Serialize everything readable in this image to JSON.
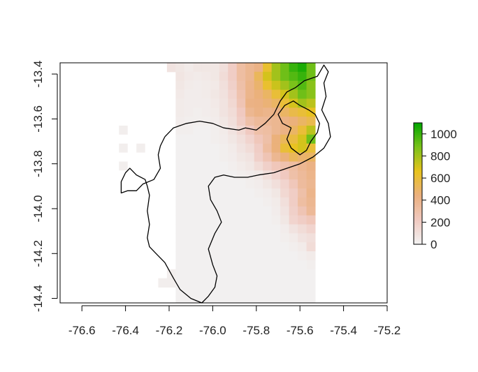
{
  "chart_data": {
    "type": "heatmap",
    "title": "",
    "xlabel": "",
    "ylabel": "",
    "xlim": [
      -76.7,
      -75.2
    ],
    "ylim": [
      -14.42,
      -13.35
    ],
    "x_ticks": [
      -76.6,
      -76.4,
      -76.2,
      -76.0,
      -75.8,
      -75.6,
      -75.4,
      -75.2
    ],
    "x_tick_labels": [
      "-76.6",
      "-76.4",
      "-76.2",
      "-76.0",
      "-75.8",
      "-75.6",
      "-75.4",
      "-75.2"
    ],
    "y_ticks": [
      -13.4,
      -13.6,
      -13.8,
      -14.0,
      -14.2,
      -14.4
    ],
    "y_tick_labels": [
      "-13.4",
      "-13.6",
      "-13.8",
      "-14.0",
      "-14.2",
      "-14.4"
    ],
    "grid": false,
    "legend": {
      "placement": "right",
      "min": 0,
      "max": 1100,
      "ticks": [
        0,
        200,
        400,
        600,
        800,
        1000
      ],
      "tick_labels": [
        "0",
        "200",
        "400",
        "600",
        "800",
        "1000"
      ],
      "colors": [
        "#f2f2f2",
        "#f0c9c0",
        "#ebb07f",
        "#e8c31d",
        "#7ac21a",
        "#00a600"
      ]
    },
    "raster": {
      "x_start": -76.25,
      "cell_size": 0.04,
      "rows": [
        {
          "y": -13.37,
          "values": [
            null,
            80,
            60,
            40,
            60,
            60,
            60,
            100,
            200,
            320,
            380,
            420,
            620,
            800,
            900,
            1000,
            1050,
            900
          ]
        },
        {
          "y": -13.41,
          "values": [
            null,
            null,
            70,
            50,
            40,
            50,
            60,
            120,
            200,
            320,
            380,
            520,
            700,
            800,
            900,
            950,
            1000,
            900
          ]
        },
        {
          "y": -13.45,
          "values": [
            null,
            null,
            60,
            40,
            30,
            40,
            50,
            100,
            180,
            300,
            400,
            480,
            620,
            720,
            800,
            880,
            950,
            850
          ]
        },
        {
          "y": -13.49,
          "values": [
            null,
            null,
            50,
            30,
            30,
            40,
            60,
            90,
            160,
            280,
            400,
            450,
            500,
            600,
            700,
            800,
            900,
            850
          ]
        },
        {
          "y": -13.53,
          "values": [
            null,
            null,
            40,
            30,
            30,
            30,
            50,
            80,
            140,
            260,
            420,
            430,
            460,
            500,
            600,
            700,
            800,
            750
          ]
        },
        {
          "y": -13.57,
          "values": [
            null,
            null,
            40,
            30,
            20,
            30,
            40,
            80,
            120,
            220,
            380,
            420,
            400,
            420,
            500,
            560,
            600,
            650
          ]
        },
        {
          "y": -13.61,
          "values": [
            null,
            null,
            30,
            20,
            20,
            20,
            30,
            60,
            100,
            200,
            300,
            350,
            360,
            380,
            420,
            450,
            500,
            550
          ]
        },
        {
          "y": -13.65,
          "values": [
            null,
            null,
            20,
            20,
            10,
            10,
            20,
            40,
            80,
            140,
            220,
            300,
            320,
            380,
            420,
            500,
            600,
            750
          ]
        },
        {
          "y": -13.69,
          "values": [
            null,
            null,
            10,
            10,
            10,
            10,
            20,
            30,
            60,
            100,
            160,
            240,
            300,
            450,
            520,
            580,
            700,
            900
          ]
        },
        {
          "y": -13.73,
          "values": [
            null,
            null,
            10,
            10,
            10,
            10,
            10,
            20,
            40,
            80,
            120,
            200,
            330,
            450,
            600,
            650,
            700,
            600
          ]
        },
        {
          "y": -13.77,
          "values": [
            null,
            null,
            10,
            10,
            10,
            10,
            10,
            20,
            30,
            60,
            80,
            180,
            260,
            380,
            450,
            520,
            480,
            500
          ]
        },
        {
          "y": -13.81,
          "values": [
            null,
            null,
            10,
            10,
            10,
            10,
            10,
            10,
            20,
            40,
            60,
            120,
            180,
            240,
            280,
            320,
            380,
            420
          ]
        },
        {
          "y": -13.85,
          "values": [
            null,
            null,
            10,
            10,
            10,
            10,
            10,
            10,
            10,
            20,
            30,
            50,
            100,
            160,
            220,
            300,
            350,
            400
          ]
        },
        {
          "y": -13.89,
          "values": [
            null,
            null,
            10,
            10,
            10,
            10,
            10,
            10,
            10,
            10,
            20,
            30,
            60,
            100,
            160,
            240,
            340,
            380
          ]
        },
        {
          "y": -13.93,
          "values": [
            null,
            null,
            10,
            10,
            10,
            10,
            10,
            10,
            10,
            10,
            10,
            20,
            30,
            60,
            140,
            200,
            300,
            400
          ]
        },
        {
          "y": -13.97,
          "values": [
            null,
            null,
            10,
            10,
            10,
            10,
            10,
            10,
            10,
            10,
            10,
            10,
            20,
            40,
            100,
            200,
            320,
            380
          ]
        },
        {
          "y": -14.01,
          "values": [
            null,
            null,
            10,
            10,
            10,
            10,
            10,
            10,
            10,
            10,
            10,
            10,
            10,
            30,
            80,
            180,
            260,
            360
          ]
        },
        {
          "y": -14.05,
          "values": [
            null,
            null,
            10,
            10,
            10,
            10,
            10,
            10,
            10,
            10,
            10,
            10,
            10,
            20,
            60,
            160,
            200,
            240
          ]
        },
        {
          "y": -14.09,
          "values": [
            null,
            null,
            10,
            10,
            10,
            10,
            10,
            10,
            10,
            10,
            10,
            10,
            10,
            10,
            30,
            80,
            120,
            160
          ]
        },
        {
          "y": -14.13,
          "values": [
            null,
            null,
            10,
            10,
            10,
            10,
            10,
            10,
            10,
            10,
            10,
            10,
            10,
            10,
            20,
            40,
            80,
            100
          ]
        },
        {
          "y": -14.17,
          "values": [
            null,
            null,
            10,
            10,
            10,
            10,
            10,
            10,
            10,
            10,
            10,
            10,
            10,
            10,
            10,
            20,
            40,
            120
          ]
        },
        {
          "y": -14.21,
          "values": [
            null,
            null,
            10,
            10,
            10,
            10,
            10,
            10,
            10,
            10,
            10,
            10,
            10,
            10,
            10,
            10,
            20,
            40
          ]
        },
        {
          "y": -14.25,
          "values": [
            null,
            null,
            10,
            10,
            10,
            10,
            10,
            10,
            10,
            10,
            10,
            10,
            10,
            10,
            10,
            10,
            10,
            20
          ]
        },
        {
          "y": -14.29,
          "values": [
            null,
            20,
            10,
            10,
            10,
            10,
            10,
            10,
            10,
            10,
            10,
            10,
            10,
            10,
            10,
            10,
            10,
            10
          ]
        },
        {
          "y": -14.33,
          "values": [
            20,
            20,
            10,
            10,
            10,
            10,
            10,
            10,
            10,
            10,
            10,
            10,
            10,
            10,
            10,
            10,
            10,
            10
          ]
        },
        {
          "y": -14.37,
          "values": [
            null,
            null,
            10,
            10,
            10,
            10,
            10,
            10,
            10,
            10,
            10,
            10,
            10,
            10,
            10,
            10,
            10,
            10
          ]
        },
        {
          "y": -14.41,
          "values": [
            null,
            null,
            10,
            10,
            10,
            10,
            10,
            10,
            10,
            10,
            10,
            10,
            10,
            10,
            10,
            10,
            10,
            10
          ]
        }
      ],
      "extra_cells": [
        {
          "x": -76.41,
          "y": -13.65,
          "value": 20
        },
        {
          "x": -76.41,
          "y": -13.73,
          "value": 20
        },
        {
          "x": -76.33,
          "y": -13.73,
          "value": 20
        },
        {
          "x": -76.41,
          "y": -13.81,
          "value": 20
        }
      ]
    },
    "region_outline": {
      "boundary_1": [
        [
          -76.22,
          -13.68
        ],
        [
          -76.18,
          -13.64
        ],
        [
          -76.12,
          -13.62
        ],
        [
          -76.06,
          -13.61
        ],
        [
          -76.0,
          -13.62
        ],
        [
          -75.95,
          -13.64
        ],
        [
          -75.88,
          -13.65
        ],
        [
          -75.85,
          -13.64
        ],
        [
          -75.8,
          -13.65
        ],
        [
          -75.76,
          -13.62
        ],
        [
          -75.72,
          -13.58
        ],
        [
          -75.69,
          -13.52
        ],
        [
          -75.66,
          -13.48
        ],
        [
          -75.62,
          -13.46
        ],
        [
          -75.58,
          -13.43
        ],
        [
          -75.52,
          -13.41
        ],
        [
          -75.49,
          -13.36
        ],
        [
          -75.47,
          -13.39
        ],
        [
          -75.49,
          -13.44
        ],
        [
          -75.48,
          -13.5
        ],
        [
          -75.5,
          -13.56
        ],
        [
          -75.47,
          -13.62
        ],
        [
          -75.46,
          -13.68
        ],
        [
          -75.49,
          -13.73
        ],
        [
          -75.54,
          -13.77
        ],
        [
          -75.6,
          -13.8
        ],
        [
          -75.66,
          -13.82
        ],
        [
          -75.72,
          -13.84
        ],
        [
          -75.79,
          -13.85
        ],
        [
          -75.84,
          -13.86
        ],
        [
          -75.9,
          -13.86
        ],
        [
          -75.95,
          -13.85
        ],
        [
          -75.99,
          -13.86
        ],
        [
          -76.02,
          -13.9
        ],
        [
          -76.01,
          -13.96
        ],
        [
          -75.98,
          -14.01
        ],
        [
          -75.96,
          -14.06
        ],
        [
          -75.99,
          -14.11
        ],
        [
          -76.02,
          -14.18
        ],
        [
          -76.0,
          -14.25
        ],
        [
          -75.98,
          -14.3
        ],
        [
          -75.99,
          -14.35
        ],
        [
          -76.02,
          -14.39
        ],
        [
          -76.05,
          -14.42
        ],
        [
          -76.1,
          -14.4
        ],
        [
          -76.15,
          -14.36
        ],
        [
          -76.18,
          -14.31
        ],
        [
          -76.22,
          -14.24
        ],
        [
          -76.26,
          -14.2
        ],
        [
          -76.29,
          -14.17
        ],
        [
          -76.3,
          -14.13
        ],
        [
          -76.29,
          -14.07
        ],
        [
          -76.3,
          -14.01
        ],
        [
          -76.29,
          -13.94
        ],
        [
          -76.3,
          -13.9
        ],
        [
          -76.31,
          -13.87
        ],
        [
          -76.35,
          -13.85
        ],
        [
          -76.38,
          -13.82
        ],
        [
          -76.4,
          -13.84
        ],
        [
          -76.42,
          -13.88
        ],
        [
          -76.42,
          -13.93
        ],
        [
          -76.39,
          -13.92
        ],
        [
          -76.35,
          -13.92
        ],
        [
          -76.32,
          -13.89
        ],
        [
          -76.27,
          -13.87
        ],
        [
          -76.24,
          -13.82
        ],
        [
          -76.25,
          -13.76
        ],
        [
          -76.24,
          -13.72
        ],
        [
          -76.22,
          -13.68
        ]
      ],
      "boundary_2": [
        [
          -75.64,
          -13.64
        ],
        [
          -75.68,
          -13.62
        ],
        [
          -75.7,
          -13.58
        ],
        [
          -75.67,
          -13.54
        ],
        [
          -75.63,
          -13.52
        ],
        [
          -75.6,
          -13.54
        ],
        [
          -75.56,
          -13.56
        ],
        [
          -75.53,
          -13.58
        ],
        [
          -75.51,
          -13.62
        ],
        [
          -75.52,
          -13.66
        ],
        [
          -75.55,
          -13.7
        ],
        [
          -75.57,
          -13.74
        ],
        [
          -75.6,
          -13.76
        ],
        [
          -75.64,
          -13.73
        ],
        [
          -75.66,
          -13.69
        ],
        [
          -75.64,
          -13.64
        ]
      ]
    }
  }
}
